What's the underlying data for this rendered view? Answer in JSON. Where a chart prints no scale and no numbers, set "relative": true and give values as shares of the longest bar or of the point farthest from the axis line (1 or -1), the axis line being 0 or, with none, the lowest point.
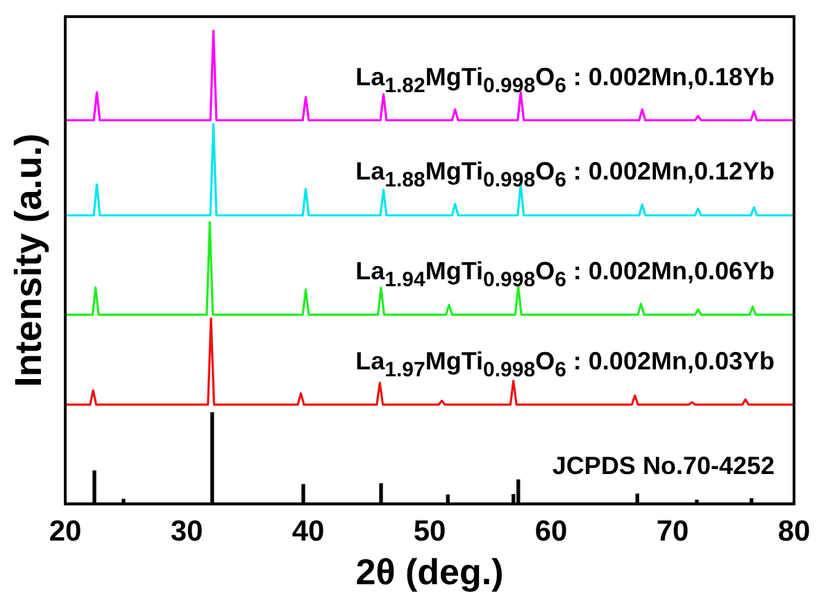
{
  "chart_data": {
    "type": "line",
    "relative": true,
    "xlabel": "2θ (deg.)",
    "ylabel": "Intensity (a.u.)",
    "xlim": [
      20,
      80
    ],
    "xticks": [
      20,
      30,
      40,
      50,
      60,
      70,
      80
    ],
    "grid": false,
    "legend": false,
    "marker": "none",
    "line_style": "solid",
    "series": [
      {
        "name": "La$_{1.82}$MgTi$_{0.998}$O$_{6}$ : 0.002Mn,0.18Yb",
        "color": "#ff00ff",
        "x": [
          20,
          22.35,
          22.6,
          22.85,
          31.95,
          32.2,
          32.45,
          39.55,
          39.8,
          40.05,
          45.95,
          46.2,
          46.45,
          51.85,
          52.1,
          52.35,
          57.25,
          57.5,
          57.75,
          67.25,
          67.5,
          67.75,
          71.85,
          72.1,
          72.35,
          76.45,
          76.7,
          76.95,
          80
        ],
        "values": [
          0.811,
          0.811,
          0.87,
          0.811,
          0.811,
          1.0,
          0.811,
          0.811,
          0.86,
          0.811,
          0.811,
          0.866,
          0.811,
          0.811,
          0.834,
          0.811,
          0.811,
          0.87,
          0.811,
          0.811,
          0.834,
          0.811,
          0.811,
          0.82,
          0.811,
          0.811,
          0.83,
          0.811,
          0.811
        ]
      },
      {
        "name": "La$_{1.88}$MgTi$_{0.998}$O$_{6}$ : 0.002Mn,0.12Yb",
        "color": "#00e5ee",
        "x": [
          20,
          22.35,
          22.6,
          22.85,
          31.95,
          32.2,
          32.45,
          39.55,
          39.8,
          40.05,
          45.95,
          46.2,
          46.45,
          51.85,
          52.1,
          52.35,
          57.25,
          57.5,
          57.75,
          67.25,
          67.5,
          67.75,
          71.85,
          72.1,
          72.35,
          76.45,
          76.7,
          76.95,
          80
        ],
        "values": [
          0.61,
          0.61,
          0.675,
          0.61,
          0.61,
          0.803,
          0.61,
          0.61,
          0.666,
          0.61,
          0.61,
          0.664,
          0.61,
          0.61,
          0.634,
          0.61,
          0.61,
          0.675,
          0.61,
          0.61,
          0.633,
          0.61,
          0.61,
          0.624,
          0.61,
          0.61,
          0.627,
          0.61,
          0.61
        ]
      },
      {
        "name": "La$_{1.94}$MgTi$_{0.998}$O$_{6}$ : 0.002Mn,0.06Yb",
        "color": "#22ee22",
        "x": [
          20,
          22.25,
          22.5,
          22.75,
          31.65,
          31.9,
          32.15,
          39.55,
          39.8,
          40.05,
          45.75,
          46.0,
          46.25,
          51.35,
          51.6,
          51.85,
          57.05,
          57.3,
          57.55,
          67.15,
          67.4,
          67.65,
          71.85,
          72.1,
          72.35,
          76.35,
          76.6,
          76.85,
          80
        ],
        "values": [
          0.4,
          0.4,
          0.457,
          0.4,
          0.4,
          0.596,
          0.4,
          0.4,
          0.453,
          0.4,
          0.4,
          0.457,
          0.4,
          0.4,
          0.421,
          0.4,
          0.4,
          0.46,
          0.4,
          0.4,
          0.423,
          0.4,
          0.4,
          0.411,
          0.4,
          0.4,
          0.417,
          0.4,
          0.4
        ]
      },
      {
        "name": "La$_{1.97}$MgTi$_{0.998}$O$_{6}$ : 0.002Mn,0.03Yb",
        "color": "#ee1111",
        "x": [
          20,
          22.05,
          22.3,
          22.55,
          31.75,
          32.0,
          32.25,
          39.15,
          39.4,
          39.65,
          45.65,
          45.9,
          46.15,
          50.75,
          51.0,
          51.25,
          56.65,
          56.9,
          57.15,
          66.65,
          66.9,
          67.15,
          71.35,
          71.6,
          71.85,
          75.75,
          76.0,
          76.25,
          80
        ],
        "values": [
          0.21,
          0.21,
          0.24,
          0.21,
          0.21,
          0.392,
          0.21,
          0.21,
          0.234,
          0.21,
          0.21,
          0.256,
          0.21,
          0.21,
          0.218,
          0.21,
          0.21,
          0.26,
          0.21,
          0.21,
          0.229,
          0.21,
          0.21,
          0.215,
          0.21,
          0.21,
          0.221,
          0.21,
          0.21
        ]
      },
      {
        "name": "JCPDS No.70-4252",
        "type": "bar",
        "color": "#000000",
        "x": [
          22.4,
          24.8,
          32.1,
          39.6,
          46.0,
          51.5,
          56.9,
          57.3,
          67.1,
          72.0,
          76.5
        ],
        "values": [
          0.07,
          0.01,
          0.193,
          0.041,
          0.043,
          0.019,
          0.02,
          0.051,
          0.021,
          0.008,
          0.011
        ]
      }
    ]
  }
}
